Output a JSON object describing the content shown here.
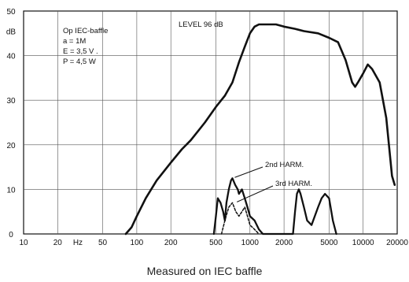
{
  "chart_data": {
    "type": "line",
    "title": "",
    "x_scale": "log",
    "xlim": [
      10,
      20000
    ],
    "ylim": [
      0,
      50
    ],
    "grid": true,
    "x_ticks": [
      "10",
      "20",
      "Hz",
      "50",
      "100",
      "200",
      "500",
      "1000",
      "2000",
      "5000",
      "10000",
      "20000"
    ],
    "y_ticks": [
      "0",
      "10",
      "20",
      "30",
      "40",
      "dB",
      "50"
    ],
    "series": [
      {
        "name": "",
        "points": [
          [
            80,
            0
          ],
          [
            90,
            1.5
          ],
          [
            100,
            4
          ],
          [
            120,
            8
          ],
          [
            150,
            12
          ],
          [
            200,
            16
          ],
          [
            250,
            19
          ],
          [
            300,
            21
          ],
          [
            400,
            25
          ],
          [
            500,
            28.5
          ],
          [
            600,
            31
          ],
          [
            700,
            34
          ],
          [
            800,
            38.5
          ],
          [
            900,
            42
          ],
          [
            1000,
            45
          ],
          [
            1100,
            46.5
          ],
          [
            1200,
            47
          ],
          [
            1400,
            47
          ],
          [
            1700,
            47
          ],
          [
            2000,
            46.5
          ],
          [
            2500,
            46
          ],
          [
            3000,
            45.5
          ],
          [
            4000,
            45
          ],
          [
            5000,
            44
          ],
          [
            6000,
            43
          ],
          [
            7000,
            39
          ],
          [
            8000,
            34
          ],
          [
            8500,
            33
          ],
          [
            9000,
            34
          ],
          [
            10000,
            36
          ],
          [
            11000,
            38
          ],
          [
            12000,
            37
          ],
          [
            14000,
            34
          ],
          [
            16000,
            26
          ],
          [
            18000,
            13
          ],
          [
            19000,
            11
          ]
        ]
      },
      {
        "name": "2nd HARM.",
        "points": [
          [
            480,
            0
          ],
          [
            500,
            4
          ],
          [
            520,
            8
          ],
          [
            550,
            7
          ],
          [
            580,
            5
          ],
          [
            600,
            3
          ],
          [
            620,
            7
          ],
          [
            650,
            10
          ],
          [
            680,
            12
          ],
          [
            700,
            12.5
          ],
          [
            740,
            11
          ],
          [
            780,
            10
          ],
          [
            800,
            9
          ],
          [
            850,
            10
          ],
          [
            900,
            8
          ],
          [
            950,
            6
          ],
          [
            1000,
            4
          ],
          [
            1100,
            3
          ],
          [
            1200,
            1
          ],
          [
            1300,
            0
          ],
          [
            2400,
            0
          ],
          [
            2500,
            5
          ],
          [
            2600,
            9
          ],
          [
            2700,
            10
          ],
          [
            2800,
            9
          ],
          [
            3000,
            6
          ],
          [
            3200,
            3
          ],
          [
            3500,
            2
          ],
          [
            4000,
            6
          ],
          [
            4300,
            8
          ],
          [
            4600,
            9
          ],
          [
            5000,
            8
          ],
          [
            5400,
            3
          ],
          [
            5800,
            0
          ]
        ]
      },
      {
        "name": "3rd HARM.",
        "points": [
          [
            560,
            0
          ],
          [
            600,
            3
          ],
          [
            650,
            6
          ],
          [
            700,
            7
          ],
          [
            750,
            5
          ],
          [
            800,
            4
          ],
          [
            850,
            5
          ],
          [
            900,
            6
          ],
          [
            950,
            4
          ],
          [
            1000,
            2
          ],
          [
            1100,
            1
          ],
          [
            1200,
            0
          ]
        ]
      }
    ],
    "annotations": {
      "level": "LEVEL 96 dB",
      "conditions": [
        "Op IEC-baffle",
        "a = 1M",
        "E = 3,5 V .",
        "P = 4,5 W"
      ],
      "harm2_label": "2nd HARM.",
      "harm3_label": "3rd HARM."
    },
    "caption": "Measured on IEC baffle"
  }
}
